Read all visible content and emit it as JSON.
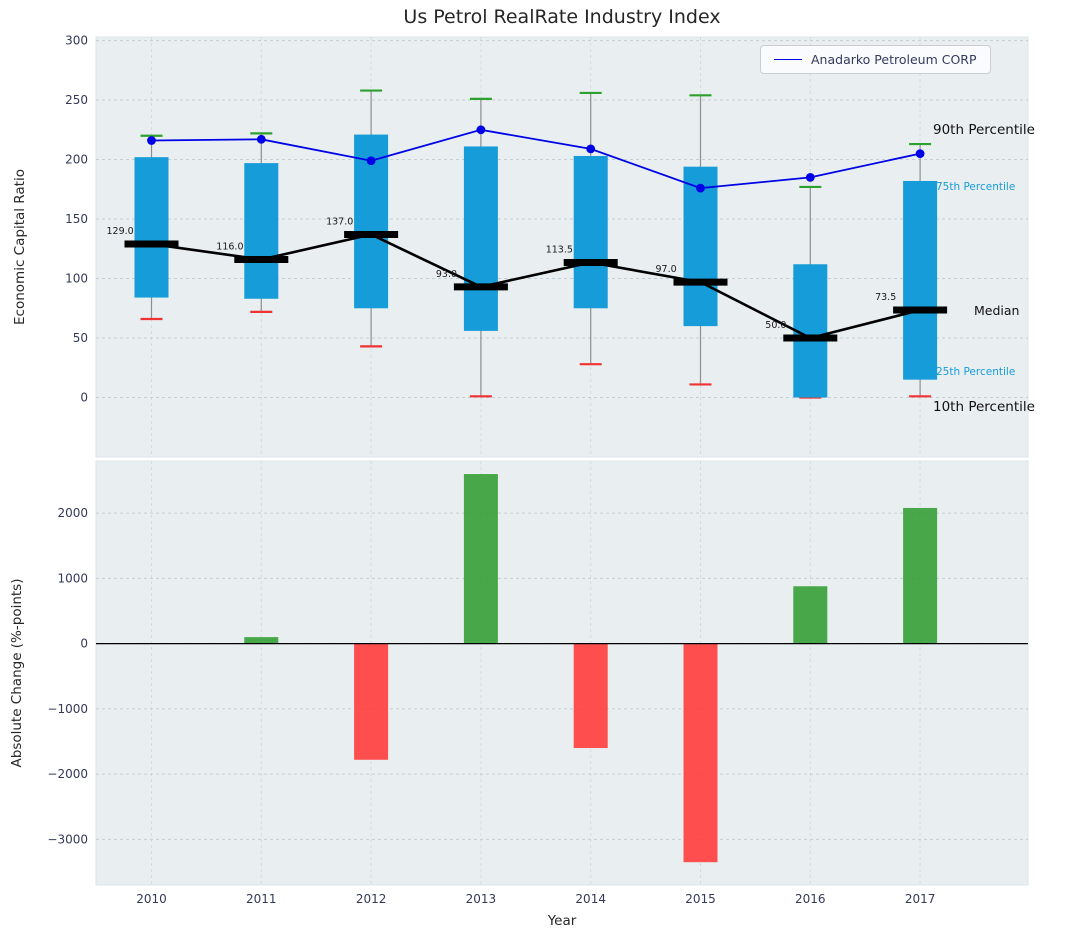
{
  "title": "Us Petrol RealRate Industry Index",
  "legend": {
    "label": "Anadarko Petroleum CORP"
  },
  "annotations": {
    "p90": "90th Percentile",
    "p75": "75th Percentile",
    "median": "Median",
    "p25": "25th Percentile",
    "p10": "10th Percentile"
  },
  "top_chart": {
    "ylabel": "Economic Capital Ratio",
    "yticks": [
      0,
      50,
      100,
      150,
      200,
      250,
      300
    ]
  },
  "bottom_chart": {
    "ylabel": "Absolute Change (%-points)",
    "xlabel": "Year",
    "yticks": [
      -3000,
      -2000,
      -1000,
      0,
      1000,
      2000
    ]
  },
  "colors": {
    "panel": "#e9eef0",
    "panel_edge": "#dde4e7",
    "grid": "#c5ced4",
    "tick": "#34395a",
    "box": "#169cd8",
    "cap_top": "#2ea02e",
    "cap_bottom": "#f03232",
    "anadarko": "#0000e6",
    "bar_positive": "#3aa13a",
    "bar_negative": "#ff4040"
  },
  "chart_data": [
    {
      "type": "boxplot",
      "title": "Us Petrol RealRate Industry Index",
      "ylabel": "Economic Capital Ratio",
      "categories": [
        "2010",
        "2011",
        "2012",
        "2013",
        "2014",
        "2015",
        "2016",
        "2017"
      ],
      "ylim": [
        -50,
        303
      ],
      "grid": true,
      "series": [
        {
          "name": "p10",
          "label": "10th Percentile",
          "values": [
            66,
            72,
            43,
            1,
            28,
            11,
            0,
            1
          ]
        },
        {
          "name": "p25",
          "label": "25th Percentile",
          "values": [
            84,
            83,
            75,
            56,
            75,
            60,
            0,
            15
          ]
        },
        {
          "name": "median",
          "label": "Median",
          "values": [
            129.0,
            116.0,
            137.0,
            93.0,
            113.5,
            97.0,
            50.0,
            73.5
          ]
        },
        {
          "name": "p75",
          "label": "75th Percentile",
          "values": [
            202,
            197,
            221,
            211,
            203,
            194,
            112,
            182
          ]
        },
        {
          "name": "p90",
          "label": "90th Percentile",
          "values": [
            220,
            222,
            258,
            251,
            256,
            254,
            177,
            213
          ]
        },
        {
          "name": "anadarko",
          "label": "Anadarko Petroleum CORP",
          "values": [
            216,
            217,
            199,
            225,
            209,
            176,
            185,
            205
          ]
        }
      ]
    },
    {
      "type": "bar",
      "ylabel": "Absolute Change (%-points)",
      "xlabel": "Year",
      "categories": [
        "2010",
        "2011",
        "2012",
        "2013",
        "2014",
        "2015",
        "2016",
        "2017"
      ],
      "values": [
        0,
        100,
        -1780,
        2600,
        -1600,
        -3350,
        880,
        2080
      ],
      "ylim": [
        -3700,
        2800
      ],
      "grid": true,
      "legend_position": "none"
    }
  ]
}
